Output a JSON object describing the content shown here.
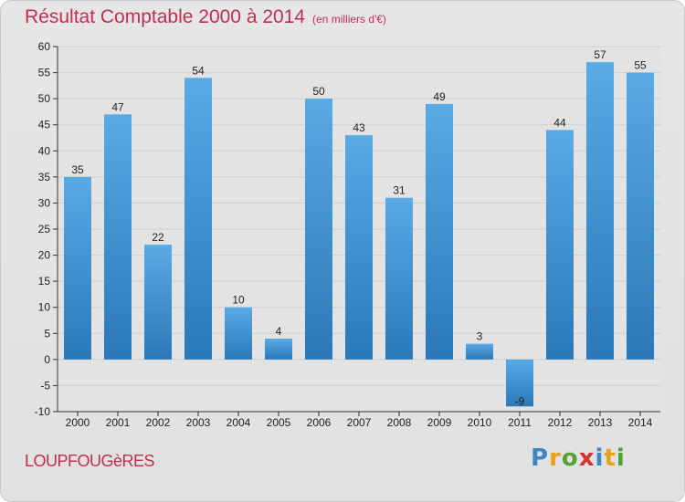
{
  "header": {
    "title": "Résultat Comptable 2000 à 2014",
    "subtitle": "(en milliers d'€)"
  },
  "footer": {
    "place_name": "LOUPFOUGèRES",
    "logo": {
      "letters": [
        "P",
        "r",
        "o",
        "x",
        "i",
        "t",
        "i"
      ],
      "colors": [
        "#3f86c6",
        "#e6a21a",
        "#52a336",
        "#d4312f",
        "#3f86c6",
        "#e6a21a",
        "#52a336"
      ]
    }
  },
  "chart_data": {
    "type": "bar",
    "title": "Résultat Comptable 2000 à 2014",
    "subtitle": "(en milliers d'€)",
    "xlabel": "",
    "ylabel": "",
    "categories": [
      "2000",
      "2001",
      "2002",
      "2003",
      "2004",
      "2005",
      "2006",
      "2007",
      "2008",
      "2009",
      "2010",
      "2011",
      "2012",
      "2013",
      "2014"
    ],
    "values": [
      35,
      47,
      22,
      54,
      10,
      4,
      50,
      43,
      31,
      49,
      3,
      -9,
      44,
      57,
      55
    ],
    "value_labels": [
      "35",
      "47",
      "22",
      "54",
      "10",
      "4",
      "50",
      "43",
      "31",
      "49",
      "3",
      "-9",
      "44",
      "57",
      "55"
    ],
    "ylim": [
      -10,
      60
    ],
    "yticks": [
      -10,
      -5,
      0,
      5,
      10,
      15,
      20,
      25,
      30,
      35,
      40,
      45,
      50,
      55,
      60
    ],
    "grid": true,
    "legend": "none",
    "colors": {
      "bar_top": "#5aaae6",
      "bar_bottom": "#2a78b8",
      "grid": "#cfcfcf",
      "axis": "#333333",
      "text": "#222222"
    }
  }
}
